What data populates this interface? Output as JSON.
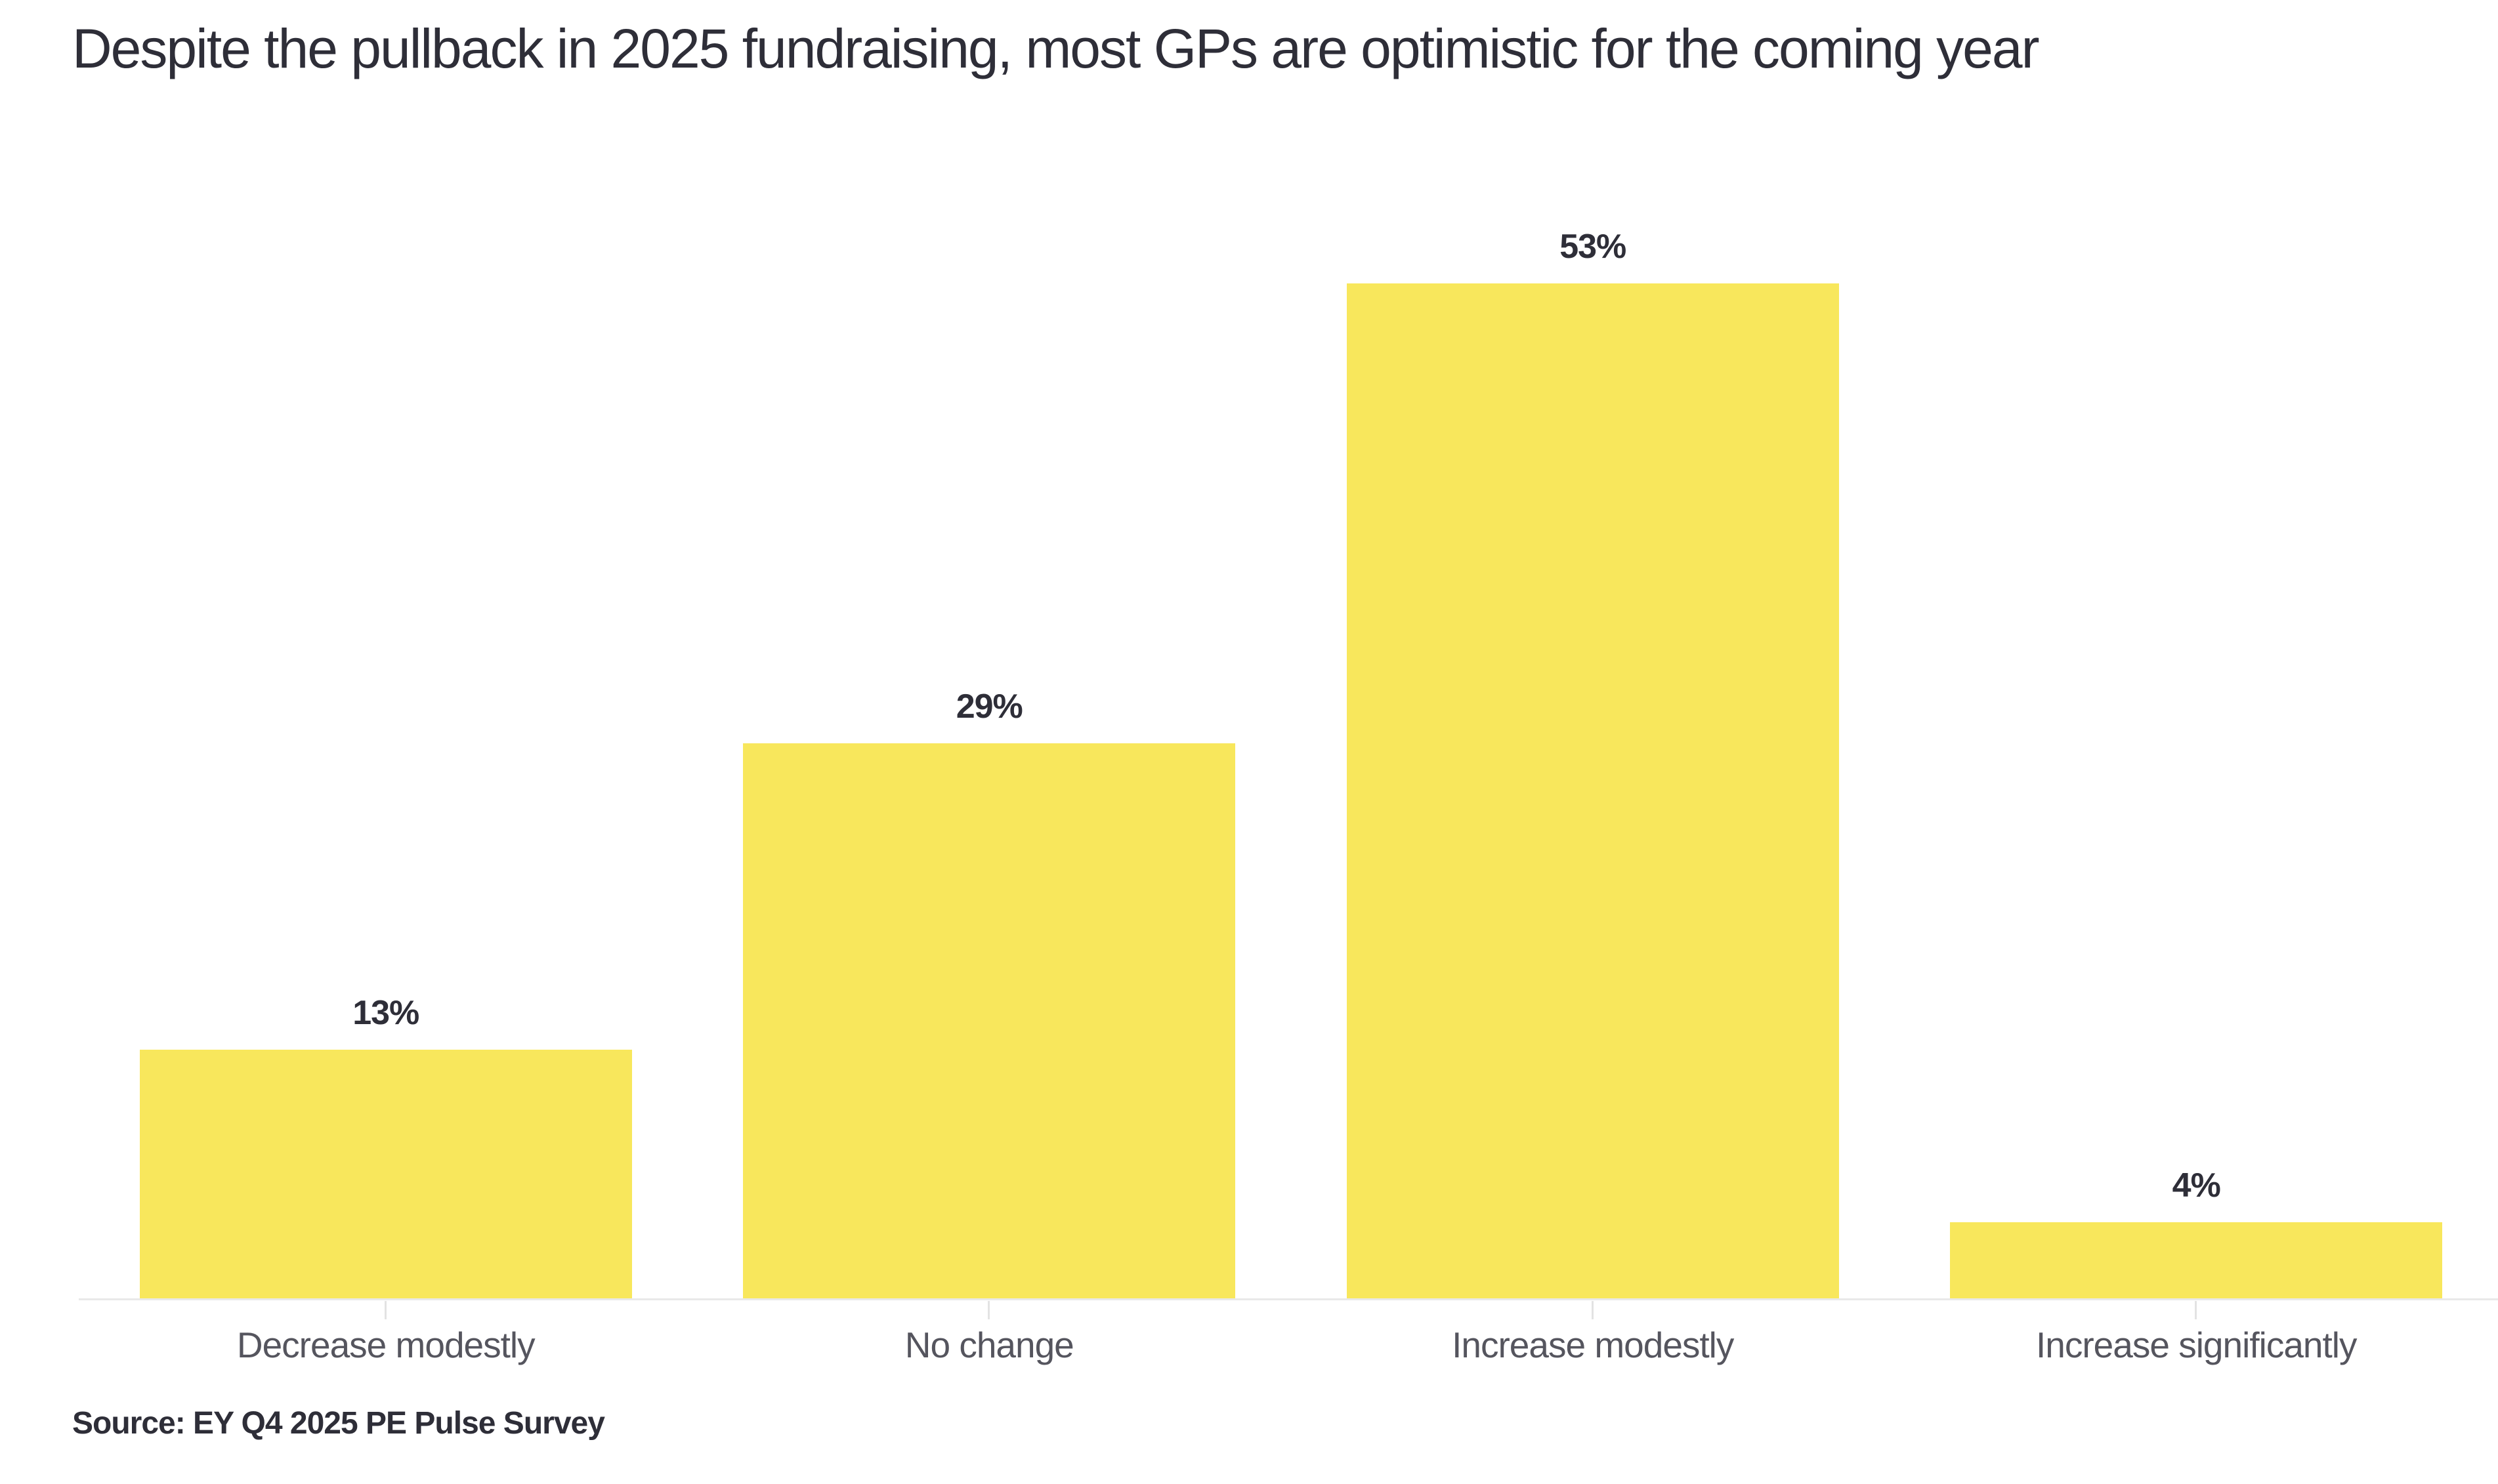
{
  "chart_data": {
    "type": "bar",
    "title": "Despite the pullback in 2025 fundraising, most GPs are optimistic for the coming year",
    "categories": [
      "Decrease modestly",
      "No change",
      "Increase modestly",
      "Increase significantly"
    ],
    "values": [
      13,
      29,
      53,
      4
    ],
    "data_labels": [
      "13%",
      "29%",
      "53%",
      "4%"
    ],
    "unit": "%",
    "xlabel": "",
    "ylabel": "",
    "ylim": [
      0,
      60
    ],
    "grid": false,
    "legend": false,
    "y_axis_shown": false,
    "bar_color": "#f8e75c",
    "orientation": "vertical"
  },
  "source": {
    "text": "Source: EY Q4 2025 PE Pulse Survey"
  },
  "colors": {
    "title": "#2e2e38",
    "data_label": "#2e2e38",
    "axis_label": "#55555e",
    "axis_line": "#e9e9e9",
    "tick": "#e3e3e3",
    "background": "#ffffff"
  }
}
